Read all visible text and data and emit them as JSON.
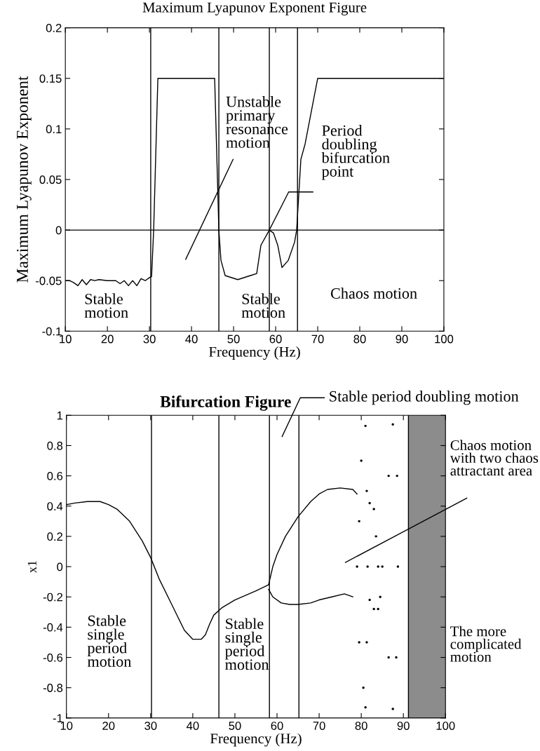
{
  "chart_data": [
    {
      "type": "line",
      "title": "Maximum Lyapunov Exponent Figure",
      "xlabel": "Frequency (Hz)",
      "ylabel": "Maximum Lyapunov Exponent",
      "xlim": [
        10,
        100
      ],
      "xticks": [
        10,
        20,
        30,
        40,
        50,
        60,
        70,
        80,
        90,
        100
      ],
      "ylim": [
        -0.1,
        0.2
      ],
      "yticks": [
        -0.1,
        -0.05,
        0,
        0.05,
        0.1,
        0.15,
        0.2
      ],
      "grid": false,
      "series": [
        {
          "color": "#000000",
          "x": [
            10,
            11,
            12,
            13,
            14,
            15,
            16,
            17,
            18,
            20,
            22,
            23,
            24,
            25,
            26,
            27,
            28,
            29,
            30,
            30.5,
            31,
            32,
            45.5,
            46.5,
            47,
            48,
            51,
            54,
            55.5,
            56.5,
            58.5,
            59.5,
            60.5,
            61.5,
            63,
            64.5,
            65,
            66,
            67,
            70,
            100
          ],
          "values": [
            -0.05,
            -0.05,
            -0.052,
            -0.055,
            -0.049,
            -0.054,
            -0.049,
            -0.05,
            -0.049,
            -0.05,
            -0.05,
            -0.053,
            -0.05,
            -0.055,
            -0.05,
            -0.055,
            -0.048,
            -0.05,
            -0.047,
            -0.046,
            0,
            0.15,
            0.15,
            0,
            -0.03,
            -0.045,
            -0.049,
            -0.045,
            -0.043,
            -0.015,
            0,
            -0.003,
            -0.015,
            -0.037,
            -0.03,
            -0.012,
            0,
            0.07,
            0.085,
            0.15,
            0.15
          ]
        }
      ],
      "ref_lines": [
        {
          "axis": "y",
          "value": 0
        },
        {
          "axis": "x",
          "value": 30.3
        },
        {
          "axis": "x",
          "value": 46.5
        },
        {
          "axis": "x",
          "value": 58.5
        },
        {
          "axis": "x",
          "value": 65.2
        }
      ],
      "annotations": [
        "Unstable\nprimary\nresonance\nmotion",
        {
          "text": "Period\ndoubling\nbifurcation\npoint",
          "x": 58.5,
          "y": 0
        },
        "Stable\nmotion",
        "Stable\nmotion",
        "Chaos motion"
      ]
    },
    {
      "type": "line",
      "title": "Bifurcation Figure",
      "xlabel": "Frequency (Hz)",
      "ylabel": "x1",
      "xlim": [
        10,
        100
      ],
      "xticks": [
        10,
        20,
        30,
        40,
        50,
        60,
        70,
        80,
        90,
        100
      ],
      "ylim": [
        -1,
        1
      ],
      "yticks": [
        -1,
        -0.8,
        -0.6,
        -0.4,
        -0.2,
        0,
        0.2,
        0.4,
        0.6,
        0.8,
        1
      ],
      "grid": false,
      "series": [
        {
          "color": "#000000",
          "x": [
            10,
            12,
            15,
            18,
            20,
            22,
            25,
            28,
            30,
            32,
            35,
            38,
            40,
            42,
            43,
            44,
            45,
            47,
            50,
            55,
            58
          ],
          "values": [
            0.41,
            0.42,
            0.43,
            0.43,
            0.41,
            0.38,
            0.3,
            0.17,
            0.06,
            -0.08,
            -0.25,
            -0.42,
            -0.48,
            -0.48,
            -0.45,
            -0.38,
            -0.32,
            -0.27,
            -0.22,
            -0.16,
            -0.12
          ]
        },
        {
          "color": "#000000",
          "x": [
            58,
            59,
            60,
            62,
            65,
            68,
            70,
            72,
            75,
            78,
            79
          ],
          "values": [
            -0.12,
            0,
            0.08,
            0.2,
            0.33,
            0.43,
            0.48,
            0.51,
            0.52,
            0.51,
            0.48
          ]
        },
        {
          "color": "#000000",
          "x": [
            58,
            59,
            61,
            63,
            65,
            68,
            70,
            73,
            76,
            78
          ],
          "values": [
            -0.15,
            -0.2,
            -0.24,
            -0.25,
            -0.25,
            -0.24,
            -0.22,
            -0.2,
            -0.18,
            -0.2
          ]
        },
        {
          "type": "scatter",
          "color": "#000000",
          "x": [
            81,
            80,
            79.5,
            79,
            79.5,
            80.5,
            81,
            81.3,
            81.5,
            81.3
          ],
          "values": [
            0.93,
            0.7,
            0.3,
            0,
            -0.5,
            -0.8,
            -0.93,
            -0.5,
            0,
            0.5
          ]
        },
        {
          "type": "scatter",
          "color": "#000000",
          "x": [
            82,
            83,
            83.5,
            84,
            84.5,
            84,
            83,
            82
          ],
          "values": [
            0.42,
            0.38,
            0.2,
            0,
            -0.2,
            -0.28,
            -0.28,
            -0.22
          ]
        },
        {
          "type": "scatter",
          "color": "#000000",
          "x": [
            87.5,
            88.5,
            88.7,
            88.3,
            87.5,
            86.5,
            85,
            86.5
          ],
          "values": [
            0.94,
            0.6,
            0,
            -0.6,
            -0.94,
            -0.6,
            0,
            0.6
          ]
        }
      ],
      "bands": [
        {
          "axis": "x",
          "from": 91.2,
          "to": 100,
          "color": "#8c8c8c"
        }
      ],
      "ref_lines": [
        {
          "axis": "x",
          "value": 30.2
        },
        {
          "axis": "x",
          "value": 46.2
        },
        {
          "axis": "x",
          "value": 58.2
        },
        {
          "axis": "x",
          "value": 65.2
        },
        {
          "axis": "x",
          "value": 91.2
        }
      ],
      "annotations": [
        "Stable period doubling motion",
        "Chaos motion\nwith two chaos\nattractant area",
        "Stable\nsingle\nperiod\nmotion",
        "Stable\nsingle\nperiod\nmotion",
        "The more\ncomplicated\nmotion"
      ]
    }
  ]
}
